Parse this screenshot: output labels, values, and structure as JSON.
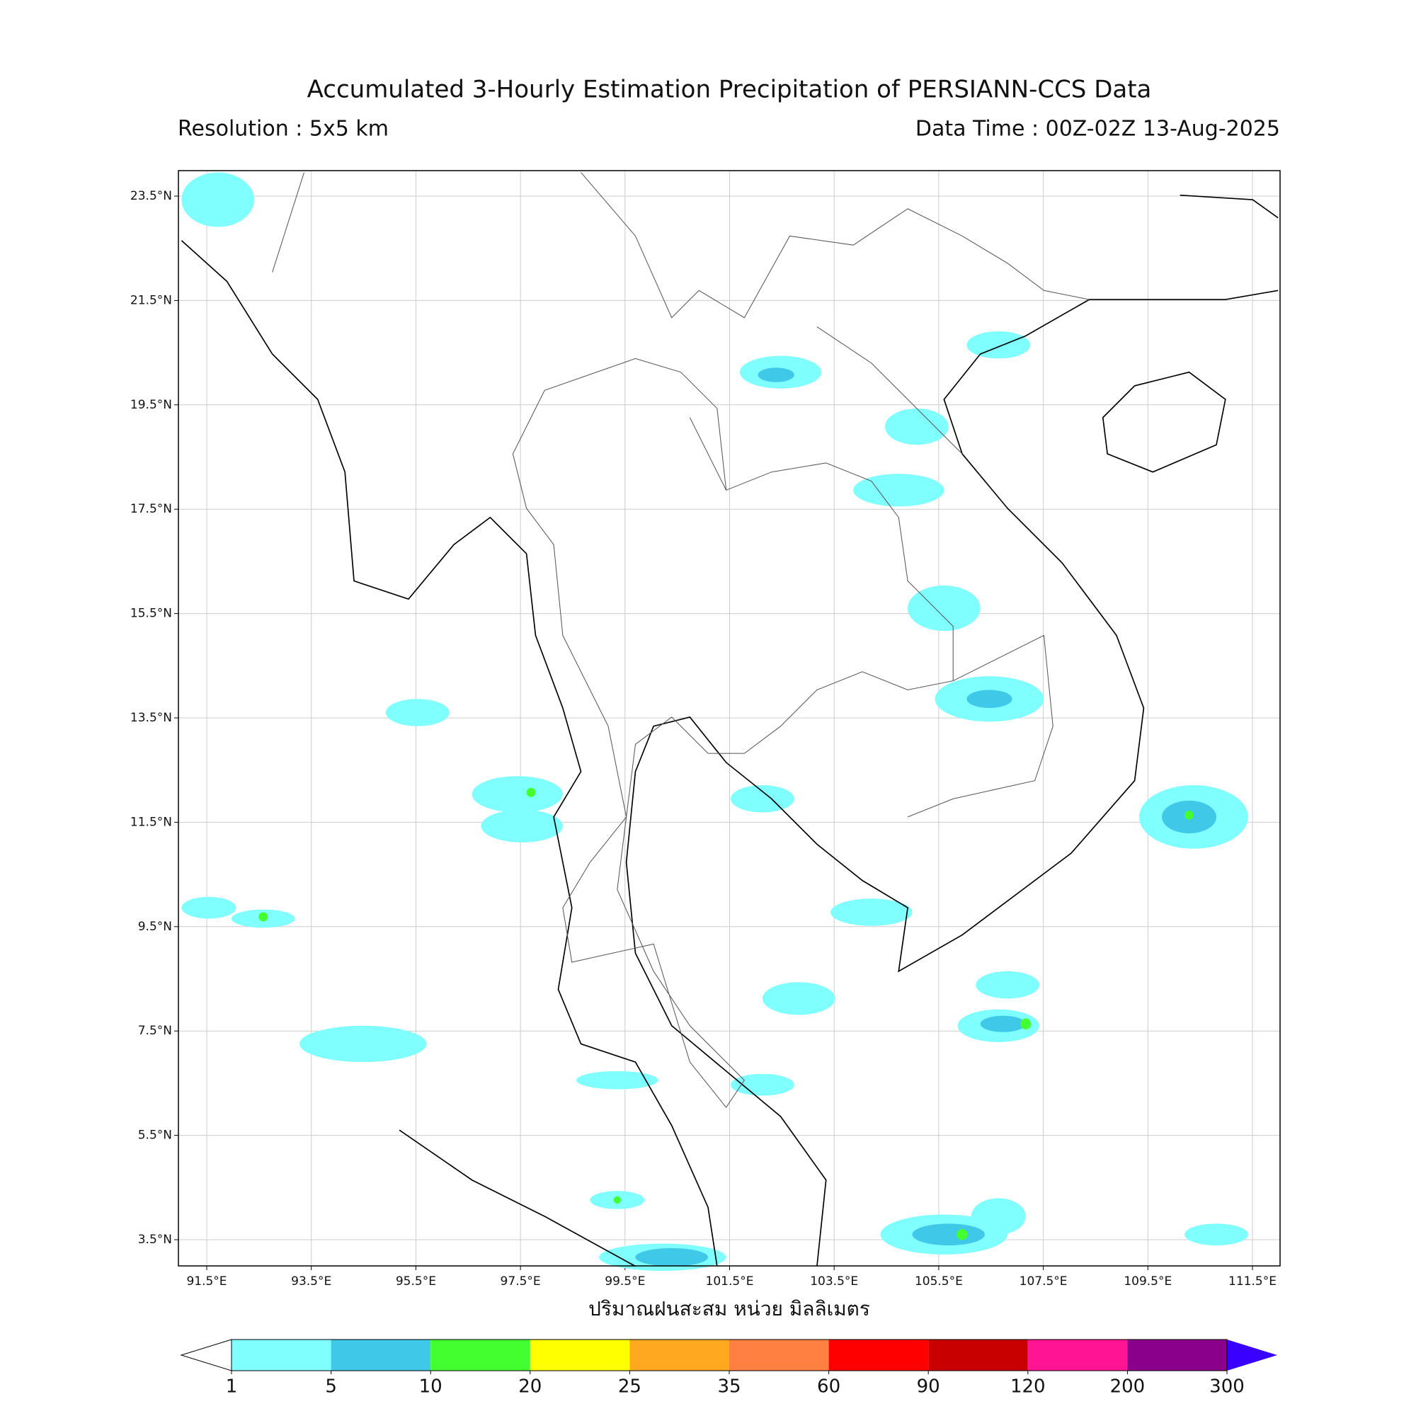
{
  "header": {
    "title": "Accumulated 3-Hourly Estimation Precipitation of PERSIANN-CCS Data",
    "resolution": "Resolution : 5x5 km",
    "data_time": "Data Time : 00Z-02Z 13-Aug-2025"
  },
  "map": {
    "lat_ticks": [
      "23.5°N",
      "21.5°N",
      "19.5°N",
      "17.5°N",
      "15.5°N",
      "13.5°N",
      "11.5°N",
      "9.5°N",
      "7.5°N",
      "5.5°N",
      "3.5°N"
    ],
    "lon_ticks": [
      "91.5°E",
      "93.5°E",
      "95.5°E",
      "97.5°E",
      "99.5°E",
      "101.5°E",
      "103.5°E",
      "105.5°E",
      "107.5°E",
      "109.5°E",
      "111.5°E"
    ],
    "grid": true
  },
  "colorbar": {
    "label": "ปริมาณฝนสะสม หน่วย มิลลิเมตร",
    "boundaries": [
      1,
      5,
      10,
      20,
      25,
      35,
      60,
      90,
      120,
      200,
      300
    ],
    "colors": [
      "#80ffff",
      "#40c8e8",
      "#44ff30",
      "#ffff00",
      "#ffa820",
      "#ff8040",
      "#ff0000",
      "#c80000",
      "#ff1493",
      "#8b008b"
    ],
    "over_color": "#3a00ff"
  }
}
